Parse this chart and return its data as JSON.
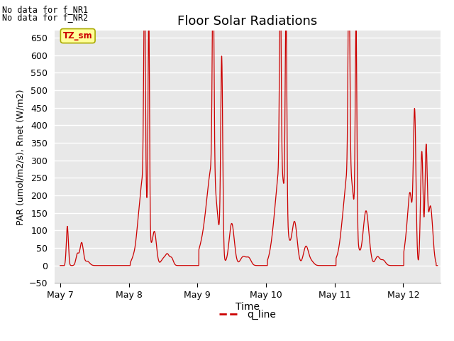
{
  "title": "Floor Solar Radiations",
  "xlabel": "Time",
  "ylabel": "PAR (umol/m2/s), Rnet (W/m2)",
  "ylim": [
    -50,
    670
  ],
  "yticks": [
    -50,
    0,
    50,
    100,
    150,
    200,
    250,
    300,
    350,
    400,
    450,
    500,
    550,
    600,
    650
  ],
  "x_tick_labels": [
    "May 7",
    "May 8",
    "May 9",
    "May 10",
    "May 11",
    "May 12"
  ],
  "x_tick_positions": [
    0,
    24,
    48,
    72,
    96,
    120
  ],
  "xlim": [
    -2,
    133
  ],
  "line_color": "#cc0000",
  "line_label": "q_line",
  "plot_bg_color": "#e8e8e8",
  "fig_bg_color": "#ffffff",
  "no_data_text1": "No data for f_NR1",
  "no_data_text2": "No data for f_NR2",
  "tz_label": "TZ_sm",
  "title_fontsize": 13,
  "axis_fontsize": 9,
  "label_fontsize": 10
}
